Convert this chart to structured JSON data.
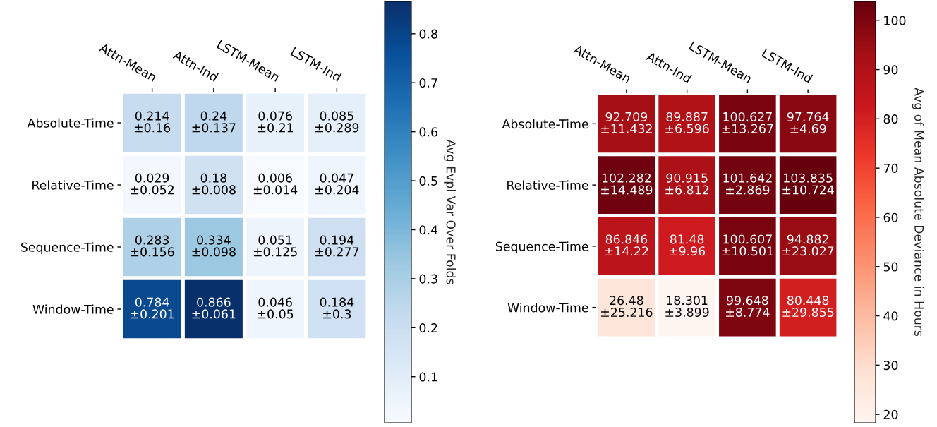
{
  "chart_data": [
    {
      "type": "heatmap",
      "categories": [
        "Attn-Mean",
        "Attn-Ind",
        "LSTM-Mean",
        "LSTM-Ind"
      ],
      "y_categories": [
        "Absolute-Time",
        "Relative-Time",
        "Sequence-Time",
        "Window-Time"
      ],
      "cells": [
        [
          0.214,
          0.24,
          0.076,
          0.085
        ],
        [
          0.029,
          0.18,
          0.006,
          0.047
        ],
        [
          0.283,
          0.334,
          0.051,
          0.194
        ],
        [
          0.784,
          0.866,
          0.046,
          0.184
        ]
      ],
      "cell_labels": [
        [
          "0.214\n±0.16",
          "0.24\n±0.137",
          "0.076\n±0.21",
          "0.085\n±0.289"
        ],
        [
          "0.029\n±0.052",
          "0.18\n±0.008",
          "0.006\n±0.014",
          "0.047\n±0.204"
        ],
        [
          "0.283\n±0.156",
          "0.334\n±0.098",
          "0.051\n±0.125",
          "0.194\n±0.277"
        ],
        [
          "0.784\n±0.201",
          "0.866\n±0.061",
          "0.046\n±0.05",
          "0.184\n±0.3"
        ]
      ],
      "clim": [
        0.006,
        0.866
      ],
      "cticks": [
        0.1,
        0.2,
        0.3,
        0.4,
        0.5,
        0.6,
        0.7,
        0.8
      ],
      "clabel": "Avg Evpl Var Over Folds",
      "colors": [
        "#f7fbff",
        "#deebf7",
        "#c6dbef",
        "#9ecae1",
        "#6baed6",
        "#4292c6",
        "#2171b5",
        "#08519c",
        "#08306b"
      ]
    },
    {
      "type": "heatmap",
      "categories": [
        "Attn-Mean",
        "Attn-Ind",
        "LSTM-Mean",
        "LSTM-Ind"
      ],
      "y_categories": [
        "Absolute-Time",
        "Relative-Time",
        "Sequence-Time",
        "Window-Time"
      ],
      "cells": [
        [
          92.709,
          89.887,
          100.627,
          97.764
        ],
        [
          102.282,
          90.915,
          101.642,
          103.835
        ],
        [
          86.846,
          81.48,
          100.607,
          94.882
        ],
        [
          26.48,
          18.301,
          99.648,
          80.448
        ]
      ],
      "cell_labels": [
        [
          "92.709\n±11.432",
          "89.887\n±6.596",
          "100.627\n±13.267",
          "97.764\n±4.69"
        ],
        [
          "102.282\n±14.489",
          "90.915\n±6.812",
          "101.642\n±2.869",
          "103.835\n±10.724"
        ],
        [
          "86.846\n±14.22",
          "81.48\n±9.96",
          "100.607\n±10.501",
          "94.882\n±23.027"
        ],
        [
          "26.48\n±25.216",
          "18.301\n±3.899",
          "99.648\n±8.774",
          "80.448\n±29.855"
        ]
      ],
      "clim": [
        18.301,
        103.835
      ],
      "cticks": [
        20,
        30,
        40,
        50,
        60,
        70,
        80,
        90,
        100
      ],
      "clabel": "Avg of Mean Absolute Deviance in Hours",
      "colors": [
        "#fff5f0",
        "#fee0d2",
        "#fcbba1",
        "#fc9272",
        "#fb6a4a",
        "#ef3b2c",
        "#cb181d",
        "#a50f15",
        "#67000d"
      ]
    }
  ]
}
